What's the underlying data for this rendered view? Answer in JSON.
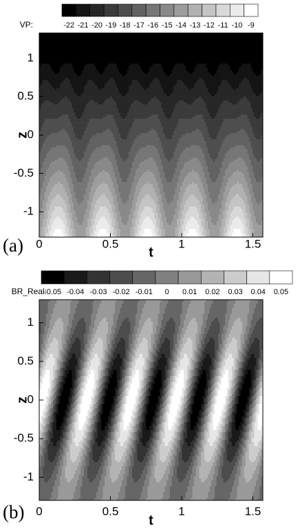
{
  "chart_data": [
    {
      "type": "contour",
      "panel_label": "(a)",
      "colorbar_label": "VP:",
      "levels": [
        -22,
        -21,
        -20,
        -19,
        -18,
        -17,
        -16,
        -15,
        -14,
        -13,
        -12,
        -11,
        -10,
        -9
      ],
      "colormap": [
        "#000000",
        "#ffffff"
      ],
      "xlabel": "t",
      "ylabel": "z",
      "xlim": [
        0,
        1.57
      ],
      "ylim": [
        -1.33,
        1.33
      ],
      "xticks": [
        0,
        0.5,
        1,
        1.5
      ],
      "yticks": [
        -1,
        -0.5,
        0,
        0.5,
        1
      ]
    },
    {
      "type": "contour",
      "panel_label": "(b)",
      "colorbar_label": "BR_Real:",
      "levels": [
        -0.05,
        -0.04,
        -0.03,
        -0.02,
        -0.01,
        0,
        0.01,
        0.02,
        0.03,
        0.04,
        0.05
      ],
      "colormap": [
        "#000000",
        "#ffffff"
      ],
      "xlabel": "t",
      "ylabel": "z",
      "xlim": [
        0,
        1.57
      ],
      "ylim": [
        -1.3,
        1.3
      ],
      "xticks": [
        0,
        0.5,
        1,
        1.5
      ],
      "yticks": [
        -1,
        -0.5,
        0,
        0.5,
        1
      ]
    }
  ]
}
